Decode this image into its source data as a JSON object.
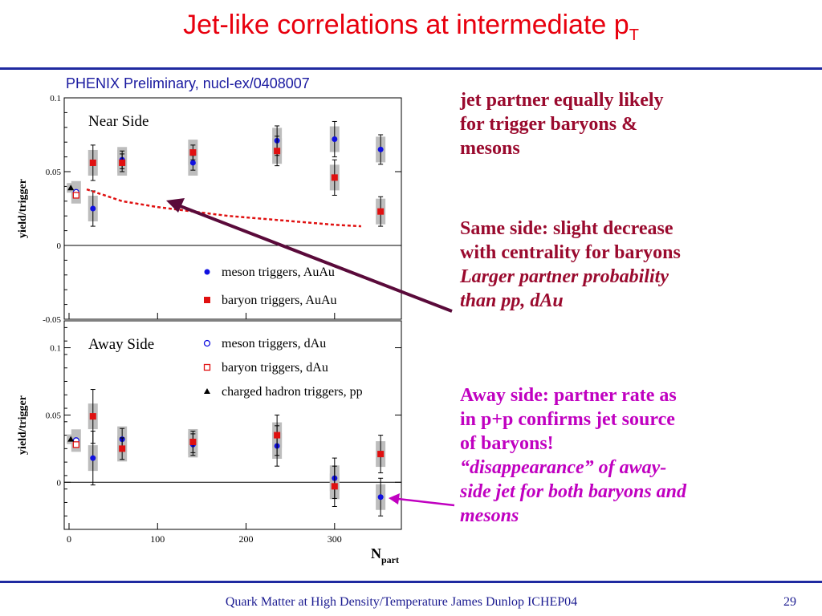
{
  "slide": {
    "title": "Jet-like correlations at intermediate p",
    "title_sub": "T",
    "preliminary_label": "PHENIX Preliminary, nucl-ex/0408007",
    "footer": "Quark Matter at High Density/Temperature James Dunlop ICHEP04",
    "page_number": "29"
  },
  "annotations": {
    "a1_line1": " jet partner equally likely",
    "a1_line2": "for trigger baryons &",
    "a1_line3": "mesons",
    "a2_line1": " Same side: slight decrease",
    "a2_line2": "with centrality for baryons",
    "a2_italic1": "Larger partner probability",
    "a2_italic2": "than pp, dAu",
    "a3_line1": "Away side: partner rate as",
    "a3_line2": "in p+p confirms jet source",
    "a3_line3": "of baryons!",
    "a3_italic1": "“disappearance” of away-",
    "a3_italic2": "side jet for both baryons and",
    "a3_italic3": "mesons"
  },
  "colors": {
    "title": "#e8000e",
    "meson": "#1010e0",
    "baryon": "#e01010",
    "arrow_near": "#5a0a3a",
    "arrow_away": "#c000c0",
    "rule": "#1f2aa0"
  },
  "chart_data": [
    {
      "type": "scatter",
      "panel_label": "Near Side",
      "ylabel": "yield/trigger",
      "xlim": [
        0,
        370
      ],
      "ylim": [
        -0.05,
        0.1
      ],
      "yticks": [
        "0.1",
        "0.05",
        "0",
        "-0.05"
      ],
      "series": [
        {
          "name": "meson triggers, AuAu",
          "marker": "filled-circle",
          "color": "#1010e0",
          "x": [
            27,
            60,
            140,
            235,
            300,
            352
          ],
          "y": [
            0.025,
            0.058,
            0.056,
            0.071,
            0.072,
            0.065
          ]
        },
        {
          "name": "baryon triggers, AuAu",
          "marker": "filled-square",
          "color": "#e01010",
          "x": [
            27,
            60,
            140,
            235,
            300,
            352
          ],
          "y": [
            0.056,
            0.056,
            0.063,
            0.064,
            0.046,
            0.023
          ]
        },
        {
          "name": "meson triggers, dAu",
          "marker": "open-circle",
          "color": "#1010e0",
          "x": [
            8
          ],
          "y": [
            0.036
          ]
        },
        {
          "name": "baryon triggers, dAu",
          "marker": "open-square",
          "color": "#e01010",
          "x": [
            8
          ],
          "y": [
            0.034
          ]
        },
        {
          "name": "charged hadron triggers, pp",
          "marker": "triangle",
          "color": "#000000",
          "x": [
            2
          ],
          "y": [
            0.039
          ]
        }
      ],
      "curve": {
        "x": [
          20,
          60,
          100,
          140,
          180,
          220,
          260,
          300,
          330
        ],
        "y": [
          0.038,
          0.03,
          0.026,
          0.023,
          0.02,
          0.018,
          0.016,
          0.014,
          0.013
        ]
      }
    },
    {
      "type": "scatter",
      "panel_label": "Away Side",
      "ylabel": "yield/trigger",
      "xlabel": "N",
      "xlabel_sub": "part",
      "xlim": [
        0,
        370
      ],
      "ylim": [
        -0.035,
        0.12
      ],
      "xticks": [
        "0",
        "100",
        "200",
        "300"
      ],
      "yticks": [
        "0.1",
        "0.05",
        "0"
      ],
      "series": [
        {
          "name": "meson triggers, AuAu",
          "marker": "filled-circle",
          "color": "#1010e0",
          "x": [
            27,
            60,
            140,
            235,
            300,
            352
          ],
          "y": [
            0.018,
            0.032,
            0.028,
            0.027,
            0.003,
            -0.011
          ]
        },
        {
          "name": "baryon triggers, AuAu",
          "marker": "filled-square",
          "color": "#e01010",
          "x": [
            27,
            60,
            140,
            235,
            300,
            352
          ],
          "y": [
            0.049,
            0.025,
            0.03,
            0.035,
            -0.003,
            0.021
          ]
        },
        {
          "name": "meson triggers, dAu",
          "marker": "open-circle",
          "color": "#1010e0",
          "x": [
            8
          ],
          "y": [
            0.031
          ]
        },
        {
          "name": "baryon triggers, dAu",
          "marker": "open-square",
          "color": "#e01010",
          "x": [
            8
          ],
          "y": [
            0.028
          ]
        },
        {
          "name": "charged hadron triggers, pp",
          "marker": "triangle",
          "color": "#000000",
          "x": [
            2
          ],
          "y": [
            0.032
          ]
        }
      ]
    }
  ]
}
